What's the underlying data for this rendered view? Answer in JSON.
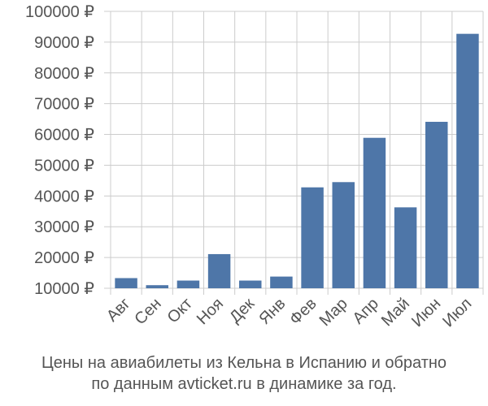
{
  "chart_data": {
    "type": "bar",
    "categories": [
      "Авг",
      "Сен",
      "Окт",
      "Ноя",
      "Дек",
      "Янв",
      "Фев",
      "Мар",
      "Апр",
      "Май",
      "Июн",
      "Июл"
    ],
    "values": [
      13300,
      11000,
      12500,
      21100,
      12500,
      13800,
      42800,
      44500,
      58900,
      36300,
      64100,
      92700
    ],
    "y_ticks": [
      "10000 ₽",
      "20000 ₽",
      "30000 ₽",
      "40000 ₽",
      "50000 ₽",
      "60000 ₽",
      "70000 ₽",
      "80000 ₽",
      "90000 ₽",
      "100000 ₽"
    ],
    "ylim": [
      10000,
      100000
    ],
    "tick_step": 10000,
    "grid": true,
    "bar_color": "#4e76a8",
    "grid_color": "#cccccc",
    "label_color": "#555555"
  },
  "caption": {
    "line1": "Цены на авиабилеты из Кельна в Испанию и обратно",
    "line2": "по данным avticket.ru в динамике за год."
  }
}
